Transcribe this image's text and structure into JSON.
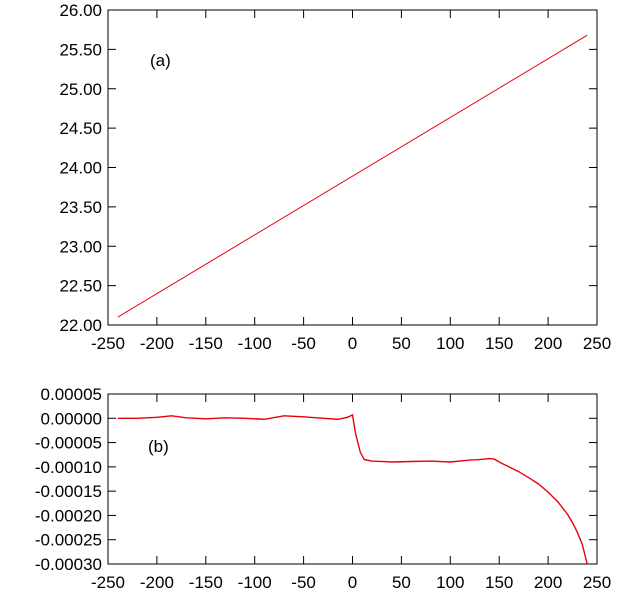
{
  "colors": {
    "line": "#e8000b",
    "axis": "#000000",
    "background": "#ffffff"
  },
  "chart_data": [
    {
      "type": "line",
      "panel_label": "(a)",
      "xlim": [
        -250,
        250
      ],
      "ylim": [
        22.0,
        26.0
      ],
      "x_ticks": [
        -250,
        -200,
        -150,
        -100,
        -50,
        0,
        50,
        100,
        150,
        200,
        250
      ],
      "x_tick_labels": [
        "-250",
        "-200",
        "-150",
        "-100",
        "-50",
        "0",
        "50",
        "100",
        "150",
        "200",
        "250"
      ],
      "y_ticks": [
        22.0,
        22.5,
        23.0,
        23.5,
        24.0,
        24.5,
        25.0,
        25.5,
        26.0
      ],
      "y_tick_labels": [
        "22.00",
        "22.50",
        "23.00",
        "23.50",
        "24.00",
        "24.50",
        "25.00",
        "25.50",
        "26.00"
      ],
      "grid": false,
      "series": [
        {
          "x": [
            -240,
            240
          ],
          "y": [
            22.1,
            25.68
          ]
        }
      ]
    },
    {
      "type": "line",
      "panel_label": "(b)",
      "xlim": [
        -250,
        250
      ],
      "ylim": [
        -0.0003,
        5e-05
      ],
      "x_ticks": [
        -250,
        -200,
        -150,
        -100,
        -50,
        0,
        50,
        100,
        150,
        200,
        250
      ],
      "x_tick_labels": [
        "-250",
        "-200",
        "-150",
        "-100",
        "-50",
        "0",
        "50",
        "100",
        "150",
        "200",
        "250"
      ],
      "y_ticks": [
        -0.0003,
        -0.00025,
        -0.0002,
        -0.00015,
        -0.0001,
        -5e-05,
        0.0,
        5e-05
      ],
      "y_tick_labels": [
        "-0.00030",
        "-0.00025",
        "-0.00020",
        "-0.00015",
        "-0.00010",
        "-0.00005",
        "0.00000",
        "0.00005"
      ],
      "grid": false,
      "series": [
        {
          "x": [
            -240,
            -220,
            -200,
            -185,
            -170,
            -150,
            -130,
            -110,
            -90,
            -70,
            -50,
            -30,
            -15,
            -5,
            0,
            3,
            8,
            12,
            20,
            40,
            60,
            80,
            100,
            120,
            130,
            140,
            145,
            150,
            160,
            170,
            180,
            190,
            200,
            210,
            220,
            225,
            230,
            235,
            240
          ],
          "y": [
            0.0,
            0.0,
            2e-06,
            5e-06,
            1e-06,
            -1e-06,
            1e-06,
            0.0,
            -2e-06,
            5e-06,
            3e-06,
            0.0,
            -2e-06,
            2e-06,
            7e-06,
            -3e-05,
            -7e-05,
            -8.5e-05,
            -8.8e-05,
            -9e-05,
            -8.9e-05,
            -8.8e-05,
            -9e-05,
            -8.6e-05,
            -8.5e-05,
            -8.3e-05,
            -8.4e-05,
            -9e-05,
            -0.0001,
            -0.00011,
            -0.000122,
            -0.000135,
            -0.000152,
            -0.000172,
            -0.000198,
            -0.000215,
            -0.000235,
            -0.00026,
            -0.0003
          ]
        }
      ]
    }
  ]
}
